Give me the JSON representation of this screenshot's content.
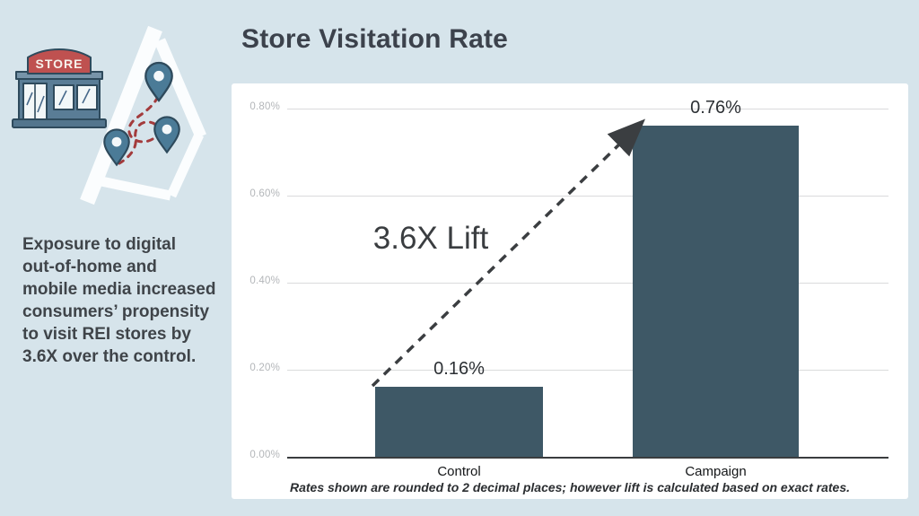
{
  "sidebar": {
    "store_sign": "STORE",
    "lines": [
      "Exposure to digital",
      "out-of-home and",
      "mobile media increased",
      "consumers’ propensity",
      "to visit REI stores by",
      "3.6X over the control."
    ]
  },
  "chart_data": {
    "type": "bar",
    "title": "Store Visitation Rate",
    "categories": [
      "Control",
      "Campaign"
    ],
    "values": [
      0.16,
      0.76
    ],
    "value_labels": [
      "0.16%",
      "0.76%"
    ],
    "xlabel": "",
    "ylabel": "",
    "ylim": [
      0,
      0.8
    ],
    "yticks": [
      {
        "value": 0.8,
        "label": "0.80%"
      },
      {
        "value": 0.6,
        "label": "0.60%"
      },
      {
        "value": 0.4,
        "label": "0.40%"
      },
      {
        "value": 0.2,
        "label": "0.20%"
      },
      {
        "value": 0.0,
        "label": "0.00%"
      }
    ],
    "grid": true,
    "legend": false,
    "annotation": {
      "text": "3.6X Lift",
      "arrow": "dashed arrow from top of Control bar to top of Campaign bar"
    },
    "footnote": "Rates shown are rounded to 2 decimal places; however lift is calculated based on exact rates.",
    "bar_color": "#3e5866"
  },
  "colors": {
    "background": "#d6e4eb",
    "panel": "#ffffff",
    "bar": "#3e5866",
    "gridline": "#dadbdc",
    "axis_line": "#3a3d3f",
    "ytick_text": "#b3b6b9",
    "xtick_text": "#141618",
    "data_label": "#2c3034",
    "annotation_text": "#3a3d40",
    "title_text": "#3c424c",
    "sidebar_text": "#3f4449",
    "store_red": "#bf5150",
    "store_slate": "#5a7d96",
    "pin_fill": "#4b7b97",
    "illustration_outline": "#2e4a5c",
    "dashed_path_red": "#a33b3c"
  }
}
